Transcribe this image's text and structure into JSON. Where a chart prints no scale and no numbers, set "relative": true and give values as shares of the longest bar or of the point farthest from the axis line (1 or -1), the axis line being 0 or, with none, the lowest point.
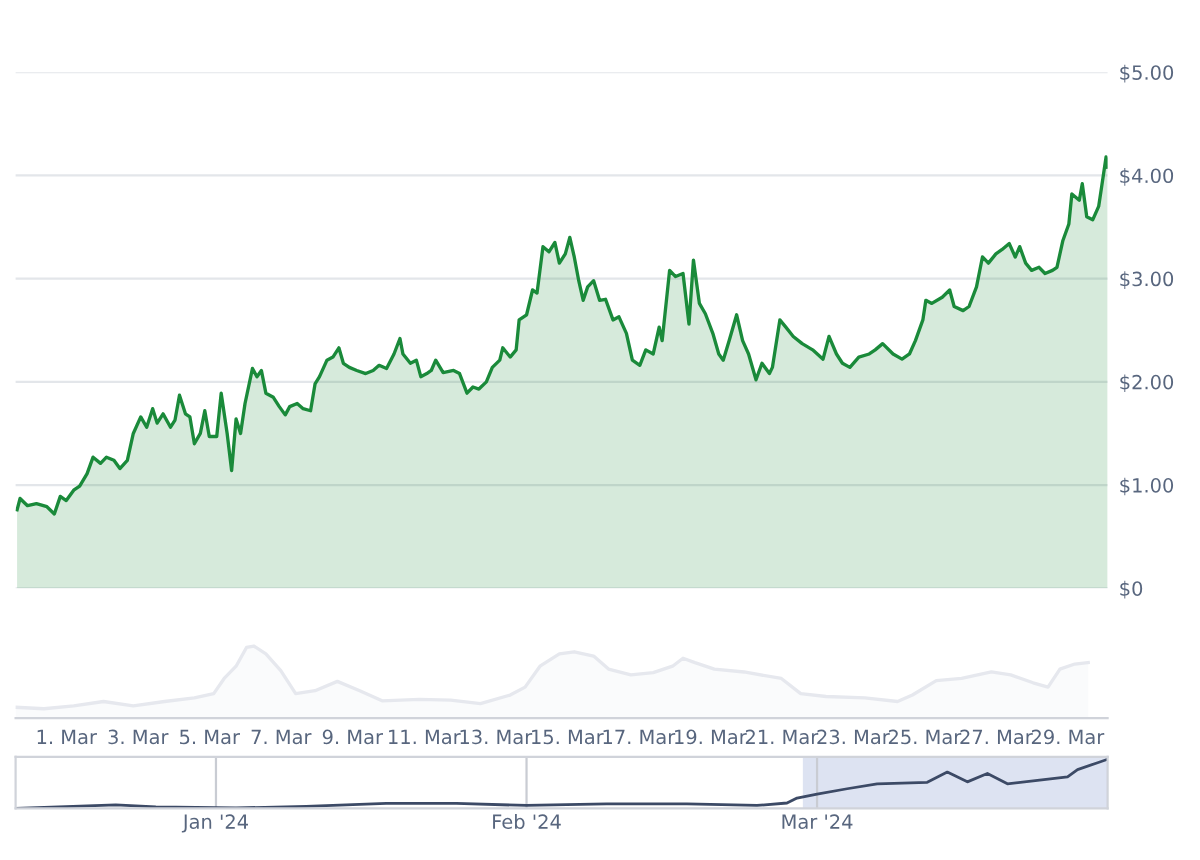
{
  "chart_data": [
    {
      "type": "area",
      "xlim": [
        "2024-02-28T14:00",
        "2024-03-30T03:00"
      ],
      "ylim": [
        0,
        5
      ],
      "yticks": [
        {
          "value": 0,
          "label": "$0"
        },
        {
          "value": 1,
          "label": "$1.00"
        },
        {
          "value": 2,
          "label": "$2.00"
        },
        {
          "value": 3,
          "label": "$3.00"
        },
        {
          "value": 4,
          "label": "$4.00"
        },
        {
          "value": 5,
          "label": "$5.00"
        }
      ],
      "grid": "y",
      "tick_labels": "y",
      "series": [
        {
          "color": "#1a8a3a",
          "x": [
            "2024-02-28T15:00",
            "2024-02-28T17:00",
            "2024-02-28T22:00",
            "2024-02-29T04:00",
            "2024-02-29T11:00",
            "2024-02-29T16:00",
            "2024-02-29T20:00",
            "2024-03-01T00:00",
            "2024-03-01T05:00",
            "2024-03-01T09:00",
            "2024-03-01T14:00",
            "2024-03-01T18:00",
            "2024-03-01T23:00",
            "2024-03-02T03:00",
            "2024-03-02T08:00",
            "2024-03-02T12:00",
            "2024-03-02T17:00",
            "2024-03-02T21:00",
            "2024-03-03T02:00",
            "2024-03-03T06:00",
            "2024-03-03T10:00",
            "2024-03-03T13:00",
            "2024-03-03T17:00",
            "2024-03-03T22:00",
            "2024-03-04T01:00",
            "2024-03-04T04:00",
            "2024-03-04T08:00",
            "2024-03-04T11:00",
            "2024-03-04T14:00",
            "2024-03-04T18:00",
            "2024-03-04T21:00",
            "2024-03-05T00:00",
            "2024-03-05T05:00",
            "2024-03-05T08:00",
            "2024-03-05T12:00",
            "2024-03-05T15:00",
            "2024-03-05T18:00",
            "2024-03-05T21:00",
            "2024-03-06T00:00",
            "2024-03-06T05:00",
            "2024-03-06T08:00",
            "2024-03-06T11:00",
            "2024-03-06T14:00",
            "2024-03-06T19:00",
            "2024-03-06T23:00",
            "2024-03-07T03:00",
            "2024-03-07T06:00",
            "2024-03-07T11:00",
            "2024-03-07T15:00",
            "2024-03-07T20:00",
            "2024-03-07T23:00",
            "2024-03-08T02:00",
            "2024-03-08T07:00",
            "2024-03-08T11:00",
            "2024-03-08T15:00",
            "2024-03-08T18:00",
            "2024-03-08T22:00",
            "2024-03-09T03:00",
            "2024-03-09T09:00",
            "2024-03-09T14:00",
            "2024-03-09T18:00",
            "2024-03-09T23:00",
            "2024-03-10T04:00",
            "2024-03-10T08:00",
            "2024-03-10T10:00",
            "2024-03-10T15:00",
            "2024-03-10T19:00",
            "2024-03-10T22:00",
            "2024-03-11T02:00",
            "2024-03-11T05:00",
            "2024-03-11T08:00",
            "2024-03-11T13:00",
            "2024-03-11T20:00",
            "2024-03-12T00:00",
            "2024-03-12T05:00",
            "2024-03-12T09:00",
            "2024-03-12T13:00",
            "2024-03-12T18:00",
            "2024-03-12T22:00",
            "2024-03-13T03:00",
            "2024-03-13T05:00",
            "2024-03-13T10:00",
            "2024-03-13T14:00",
            "2024-03-13T16:00",
            "2024-03-13T21:00",
            "2024-03-14T01:00",
            "2024-03-14T04:00",
            "2024-03-14T08:00",
            "2024-03-14T12:00",
            "2024-03-14T16:00",
            "2024-03-14T19:00",
            "2024-03-14T23:00",
            "2024-03-15T02:00",
            "2024-03-15T05:00",
            "2024-03-15T08:00",
            "2024-03-15T11:00",
            "2024-03-15T14:00",
            "2024-03-15T18:00",
            "2024-03-15T22:00",
            "2024-03-16T02:00",
            "2024-03-16T07:00",
            "2024-03-16T11:00",
            "2024-03-16T16:00",
            "2024-03-16T20:00",
            "2024-03-17T01:00",
            "2024-03-17T05:00",
            "2024-03-17T10:00",
            "2024-03-17T14:00",
            "2024-03-17T16:00",
            "2024-03-17T21:00",
            "2024-03-18T01:00",
            "2024-03-18T06:00",
            "2024-03-18T10:00",
            "2024-03-18T13:00",
            "2024-03-18T17:00",
            "2024-03-18T21:00",
            "2024-03-19T02:00",
            "2024-03-19T06:00",
            "2024-03-19T09:00",
            "2024-03-19T13:00",
            "2024-03-19T18:00",
            "2024-03-19T22:00",
            "2024-03-20T02:00",
            "2024-03-20T07:00",
            "2024-03-20T11:00",
            "2024-03-20T16:00",
            "2024-03-20T18:00",
            "2024-03-20T23:00",
            "2024-03-21T03:00",
            "2024-03-21T08:00",
            "2024-03-21T14:00",
            "2024-03-21T21:00",
            "2024-03-22T04:00",
            "2024-03-22T08:00",
            "2024-03-22T13:00",
            "2024-03-22T17:00",
            "2024-03-22T22:00",
            "2024-03-23T04:00",
            "2024-03-23T11:00",
            "2024-03-23T15:00",
            "2024-03-23T20:00",
            "2024-03-24T03:00",
            "2024-03-24T09:00",
            "2024-03-24T14:00",
            "2024-03-24T18:00",
            "2024-03-24T23:00",
            "2024-03-25T01:00",
            "2024-03-25T05:00",
            "2024-03-25T12:00",
            "2024-03-25T17:00",
            "2024-03-25T20:00",
            "2024-03-26T02:00",
            "2024-03-26T06:00",
            "2024-03-26T11:00",
            "2024-03-26T15:00",
            "2024-03-26T19:00",
            "2024-03-27T00:00",
            "2024-03-27T04:00",
            "2024-03-27T09:00",
            "2024-03-27T13:00",
            "2024-03-27T16:00",
            "2024-03-27T20:00",
            "2024-03-28T00:00",
            "2024-03-28T05:00",
            "2024-03-28T09:00",
            "2024-03-28T14:00",
            "2024-03-28T17:00",
            "2024-03-28T21:00",
            "2024-03-29T01:00",
            "2024-03-29T03:00",
            "2024-03-29T08:00",
            "2024-03-29T10:00",
            "2024-03-29T13:00",
            "2024-03-29T17:00",
            "2024-03-29T21:00",
            "2024-03-29T23:00",
            "2024-03-30T02:00",
            "2024-03-30T03:00"
          ],
          "values": [
            0.76,
            0.87,
            0.8,
            0.82,
            0.79,
            0.72,
            0.89,
            0.85,
            0.95,
            0.99,
            1.11,
            1.27,
            1.21,
            1.27,
            1.24,
            1.16,
            1.24,
            1.5,
            1.66,
            1.56,
            1.74,
            1.6,
            1.69,
            1.56,
            1.63,
            1.87,
            1.69,
            1.66,
            1.4,
            1.5,
            1.72,
            1.47,
            1.47,
            1.89,
            1.5,
            1.14,
            1.64,
            1.5,
            1.79,
            2.13,
            2.05,
            2.11,
            1.89,
            1.85,
            1.76,
            1.68,
            1.76,
            1.79,
            1.74,
            1.72,
            1.98,
            2.05,
            2.21,
            2.24,
            2.33,
            2.18,
            2.14,
            2.11,
            2.08,
            2.11,
            2.16,
            2.13,
            2.27,
            2.42,
            2.27,
            2.18,
            2.21,
            2.05,
            2.08,
            2.11,
            2.21,
            2.09,
            2.11,
            2.08,
            1.89,
            1.95,
            1.93,
            2.0,
            2.14,
            2.21,
            2.33,
            2.24,
            2.31,
            2.6,
            2.65,
            2.89,
            2.86,
            3.31,
            3.26,
            3.35,
            3.15,
            3.24,
            3.4,
            3.21,
            2.98,
            2.79,
            2.92,
            2.98,
            2.79,
            2.8,
            2.6,
            2.63,
            2.47,
            2.21,
            2.16,
            2.31,
            2.27,
            2.53,
            2.4,
            3.08,
            3.02,
            3.05,
            2.56,
            3.18,
            2.76,
            2.66,
            2.47,
            2.27,
            2.21,
            2.4,
            2.65,
            2.4,
            2.27,
            2.02,
            2.18,
            2.08,
            2.14,
            2.6,
            2.53,
            2.44,
            2.37,
            2.31,
            2.22,
            2.44,
            2.27,
            2.18,
            2.14,
            2.24,
            2.27,
            2.31,
            2.37,
            2.27,
            2.22,
            2.27,
            2.4,
            2.6,
            2.79,
            2.76,
            2.82,
            2.89,
            2.73,
            2.69,
            2.73,
            2.92,
            3.21,
            3.15,
            3.24,
            3.28,
            3.34,
            3.21,
            3.31,
            3.15,
            3.08,
            3.11,
            3.05,
            3.08,
            3.11,
            3.37,
            3.53,
            3.82,
            3.76,
            3.92,
            3.6,
            3.57,
            3.7,
            3.89,
            4.18,
            4.08
          ]
        }
      ]
    },
    {
      "type": "area",
      "relative": true,
      "xlim": [
        "2024-02-28T14:00",
        "2024-03-30T03:00"
      ],
      "tick_labels": "x",
      "xticks": [
        {
          "value": "2024-03-01",
          "label": "1. Mar"
        },
        {
          "value": "2024-03-03",
          "label": "3. Mar"
        },
        {
          "value": "2024-03-05",
          "label": "5. Mar"
        },
        {
          "value": "2024-03-07",
          "label": "7. Mar"
        },
        {
          "value": "2024-03-09",
          "label": "9. Mar"
        },
        {
          "value": "2024-03-11",
          "label": "11. Mar"
        },
        {
          "value": "2024-03-13",
          "label": "13. Mar"
        },
        {
          "value": "2024-03-15",
          "label": "15. Mar"
        },
        {
          "value": "2024-03-17",
          "label": "17. Mar"
        },
        {
          "value": "2024-03-19",
          "label": "19. Mar"
        },
        {
          "value": "2024-03-21",
          "label": "21. Mar"
        },
        {
          "value": "2024-03-23",
          "label": "23. Mar"
        },
        {
          "value": "2024-03-25",
          "label": "25. Mar"
        },
        {
          "value": "2024-03-27",
          "label": "27. Mar"
        },
        {
          "value": "2024-03-29",
          "label": "29. Mar"
        }
      ],
      "series": [
        {
          "color": "#e6e8ee",
          "x": [
            "2024-02-28T14:00",
            "2024-02-29T09:00",
            "2024-03-01T05:00",
            "2024-03-02T01:00",
            "2024-03-02T21:00",
            "2024-03-03T18:00",
            "2024-03-04T14:00",
            "2024-03-05T03:00",
            "2024-03-05T10:00",
            "2024-03-05T18:00",
            "2024-03-06T01:00",
            "2024-03-06T06:00",
            "2024-03-06T14:00",
            "2024-03-07T00:00",
            "2024-03-07T10:00",
            "2024-03-07T23:00",
            "2024-03-08T14:00",
            "2024-03-09T05:00",
            "2024-03-09T20:00",
            "2024-03-10T21:00",
            "2024-03-11T18:00",
            "2024-03-12T14:00",
            "2024-03-13T10:00",
            "2024-03-13T20:00",
            "2024-03-14T06:00",
            "2024-03-14T19:00",
            "2024-03-15T05:00",
            "2024-03-15T18:00",
            "2024-03-16T04:00",
            "2024-03-16T19:00",
            "2024-03-17T10:00",
            "2024-03-17T23:00",
            "2024-03-18T06:00",
            "2024-03-18T14:00",
            "2024-03-19T03:00",
            "2024-03-19T23:00",
            "2024-03-21T00:00",
            "2024-03-21T13:00",
            "2024-03-22T06:00",
            "2024-03-23T08:00",
            "2024-03-24T06:00",
            "2024-03-24T16:00",
            "2024-03-25T08:00",
            "2024-03-26T01:00",
            "2024-03-26T21:00",
            "2024-03-27T10:00",
            "2024-03-28T01:00",
            "2024-03-28T11:00",
            "2024-03-28T19:00",
            "2024-03-29T05:00",
            "2024-03-29T14:00"
          ],
          "values": [
            0.15,
            0.13,
            0.17,
            0.23,
            0.17,
            0.23,
            0.28,
            0.34,
            0.55,
            0.72,
            0.98,
            1.0,
            0.89,
            0.66,
            0.34,
            0.38,
            0.51,
            0.38,
            0.24,
            0.26,
            0.25,
            0.2,
            0.32,
            0.43,
            0.72,
            0.89,
            0.92,
            0.86,
            0.68,
            0.6,
            0.63,
            0.72,
            0.83,
            0.77,
            0.68,
            0.64,
            0.55,
            0.34,
            0.3,
            0.28,
            0.23,
            0.32,
            0.52,
            0.55,
            0.64,
            0.6,
            0.49,
            0.43,
            0.68,
            0.75,
            0.77
          ]
        }
      ]
    },
    {
      "type": "line",
      "relative": true,
      "xlim": [
        "2023-12-12",
        "2024-03-30"
      ],
      "tick_labels": "x",
      "grid": "x",
      "xticks": [
        {
          "value": "2024-01-01",
          "label": "Jan '24"
        },
        {
          "value": "2024-02-01",
          "label": "Feb '24"
        },
        {
          "value": "2024-03-01",
          "label": "Mar '24"
        }
      ],
      "bands": [
        {
          "axis": "x",
          "from": "2024-02-28T14:00",
          "to": "2024-03-30T03:00",
          "color": "#d5dcef"
        }
      ],
      "series": [
        {
          "color": "#3c4a66",
          "x": [
            "2023-12-12",
            "2023-12-22",
            "2023-12-26",
            "2024-01-03",
            "2024-01-10",
            "2024-01-18",
            "2024-01-25",
            "2024-02-01",
            "2024-02-09",
            "2024-02-17",
            "2024-02-24",
            "2024-02-27",
            "2024-02-28",
            "2024-03-01",
            "2024-03-04",
            "2024-03-07",
            "2024-03-12",
            "2024-03-14",
            "2024-03-16",
            "2024-03-18",
            "2024-03-20",
            "2024-03-23",
            "2024-03-26",
            "2024-03-27",
            "2024-03-29",
            "2024-03-30"
          ],
          "values": [
            0,
            0.07,
            0.03,
            0.01,
            0.04,
            0.1,
            0.1,
            0.06,
            0.09,
            0.09,
            0.06,
            0.11,
            0.21,
            0.29,
            0.4,
            0.5,
            0.53,
            0.74,
            0.54,
            0.71,
            0.5,
            0.57,
            0.64,
            0.79,
            0.93,
            1.0
          ]
        }
      ]
    }
  ]
}
